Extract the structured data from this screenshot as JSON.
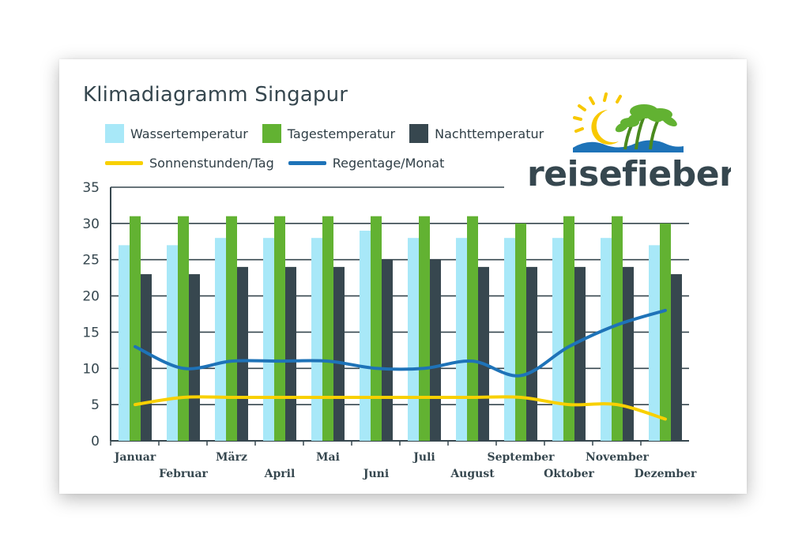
{
  "colors": {
    "wasser": "#a8e8f8",
    "tages": "#62b232",
    "nacht": "#37474f",
    "sonne": "#f8d000",
    "regen": "#1e73b8",
    "text": "#36474f"
  },
  "logo": {
    "text": "reisefieber"
  },
  "chart_data": {
    "type": "bar",
    "title": "Klimadiagramm Singapur",
    "xlabel": "",
    "ylabel": "",
    "ylim": [
      0,
      35
    ],
    "yticks": [
      0,
      5,
      10,
      15,
      20,
      25,
      30,
      35
    ],
    "grid": true,
    "legend_position": "top-left",
    "categories": [
      "Januar",
      "Februar",
      "März",
      "April",
      "Mai",
      "Juni",
      "Juli",
      "August",
      "September",
      "Oktober",
      "November",
      "Dezember"
    ],
    "series": [
      {
        "name": "Wassertemperatur",
        "kind": "bar",
        "color": "#a8e8f8",
        "values": [
          27,
          27,
          28,
          28,
          28,
          29,
          28,
          28,
          28,
          28,
          28,
          27
        ]
      },
      {
        "name": "Tagestemperatur",
        "kind": "bar",
        "color": "#62b232",
        "values": [
          31,
          31,
          31,
          31,
          31,
          31,
          31,
          31,
          30,
          31,
          31,
          30
        ]
      },
      {
        "name": "Nachttemperatur",
        "kind": "bar",
        "color": "#37474f",
        "values": [
          23,
          23,
          24,
          24,
          24,
          25,
          25,
          24,
          24,
          24,
          24,
          23
        ]
      },
      {
        "name": "Sonnenstunden/Tag",
        "kind": "line",
        "color": "#f8d000",
        "values": [
          5,
          6,
          6,
          6,
          6,
          6,
          6,
          6,
          6,
          5,
          5,
          3
        ]
      },
      {
        "name": "Regentage/Monat",
        "kind": "line",
        "color": "#1e73b8",
        "values": [
          13,
          10,
          11,
          11,
          11,
          10,
          10,
          11,
          9,
          13,
          16,
          18
        ]
      }
    ]
  }
}
